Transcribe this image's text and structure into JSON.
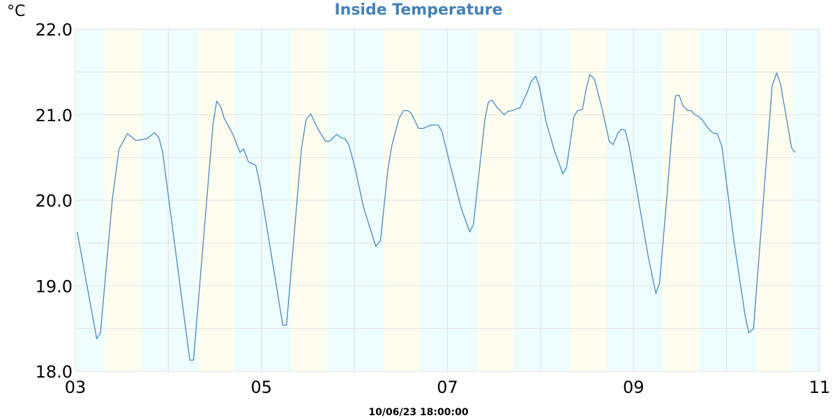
{
  "chart_data": {
    "type": "line",
    "title": "Inside Temperature",
    "ylabel": "°C",
    "xlabel": "",
    "footer": "10/06/23 18:00:00",
    "ylim": [
      18.0,
      22.0
    ],
    "xlim": [
      3,
      11
    ],
    "yticks": [
      "18.0",
      "19.0",
      "20.0",
      "21.0",
      "22.0"
    ],
    "xticks": [
      "03",
      "05",
      "07",
      "09",
      "11"
    ],
    "grid": true,
    "line_color": "#4a86c0",
    "title_color": "#4682b4",
    "shading": {
      "day_color": "#fefef0",
      "night_color": "#eefeff",
      "daylight": [
        "07:40",
        "17:05"
      ]
    },
    "x": [
      3.02,
      3.23,
      3.27,
      3.4,
      3.47,
      3.56,
      3.65,
      3.77,
      3.85,
      3.9,
      3.94,
      4.23,
      4.27,
      4.48,
      4.52,
      4.56,
      4.6,
      4.69,
      4.77,
      4.81,
      4.86,
      4.94,
      4.98,
      5.23,
      5.27,
      5.43,
      5.48,
      5.53,
      5.61,
      5.69,
      5.73,
      5.81,
      5.86,
      5.9,
      5.94,
      6.0,
      6.1,
      6.23,
      6.28,
      6.36,
      6.4,
      6.48,
      6.53,
      6.57,
      6.61,
      6.69,
      6.74,
      6.82,
      6.9,
      6.94,
      7.03,
      7.15,
      7.24,
      7.28,
      7.4,
      7.44,
      7.48,
      7.53,
      7.61,
      7.65,
      7.7,
      7.74,
      7.78,
      7.86,
      7.9,
      7.95,
      7.99,
      8.06,
      8.15,
      8.24,
      8.28,
      8.36,
      8.4,
      8.45,
      8.49,
      8.53,
      8.58,
      8.66,
      8.74,
      8.78,
      8.83,
      8.87,
      8.91,
      8.95,
      9.04,
      9.16,
      9.24,
      9.28,
      9.36,
      9.41,
      9.45,
      9.49,
      9.53,
      9.58,
      9.62,
      9.66,
      9.7,
      9.74,
      9.79,
      9.83,
      9.87,
      9.9,
      9.95,
      10.08,
      10.2,
      10.24,
      10.29,
      10.4,
      10.49,
      10.54,
      10.58,
      10.7,
      10.74
    ],
    "values": [
      19.63,
      18.38,
      18.45,
      20.03,
      20.6,
      20.78,
      20.7,
      20.72,
      20.79,
      20.73,
      20.55,
      18.13,
      18.13,
      20.89,
      21.16,
      21.1,
      20.96,
      20.78,
      20.56,
      20.6,
      20.45,
      20.41,
      20.21,
      18.54,
      18.54,
      20.6,
      20.94,
      21.01,
      20.83,
      20.69,
      20.69,
      20.77,
      20.73,
      20.72,
      20.65,
      20.41,
      19.91,
      19.46,
      19.53,
      20.36,
      20.63,
      20.96,
      21.05,
      21.05,
      21.02,
      20.84,
      20.84,
      20.88,
      20.88,
      20.81,
      20.41,
      19.9,
      19.63,
      19.72,
      20.93,
      21.15,
      21.17,
      21.09,
      21.0,
      21.04,
      21.05,
      21.07,
      21.08,
      21.27,
      21.39,
      21.45,
      21.32,
      20.92,
      20.58,
      20.31,
      20.38,
      20.98,
      21.05,
      21.06,
      21.29,
      21.47,
      21.42,
      21.08,
      20.69,
      20.65,
      20.78,
      20.83,
      20.82,
      20.65,
      20.09,
      19.33,
      18.91,
      19.03,
      20.06,
      20.75,
      21.22,
      21.23,
      21.11,
      21.05,
      21.05,
      21.0,
      20.98,
      20.94,
      20.86,
      20.81,
      20.78,
      20.78,
      20.63,
      19.52,
      18.65,
      18.45,
      18.5,
      20.06,
      21.34,
      21.49,
      21.36,
      20.61,
      20.56
    ]
  }
}
